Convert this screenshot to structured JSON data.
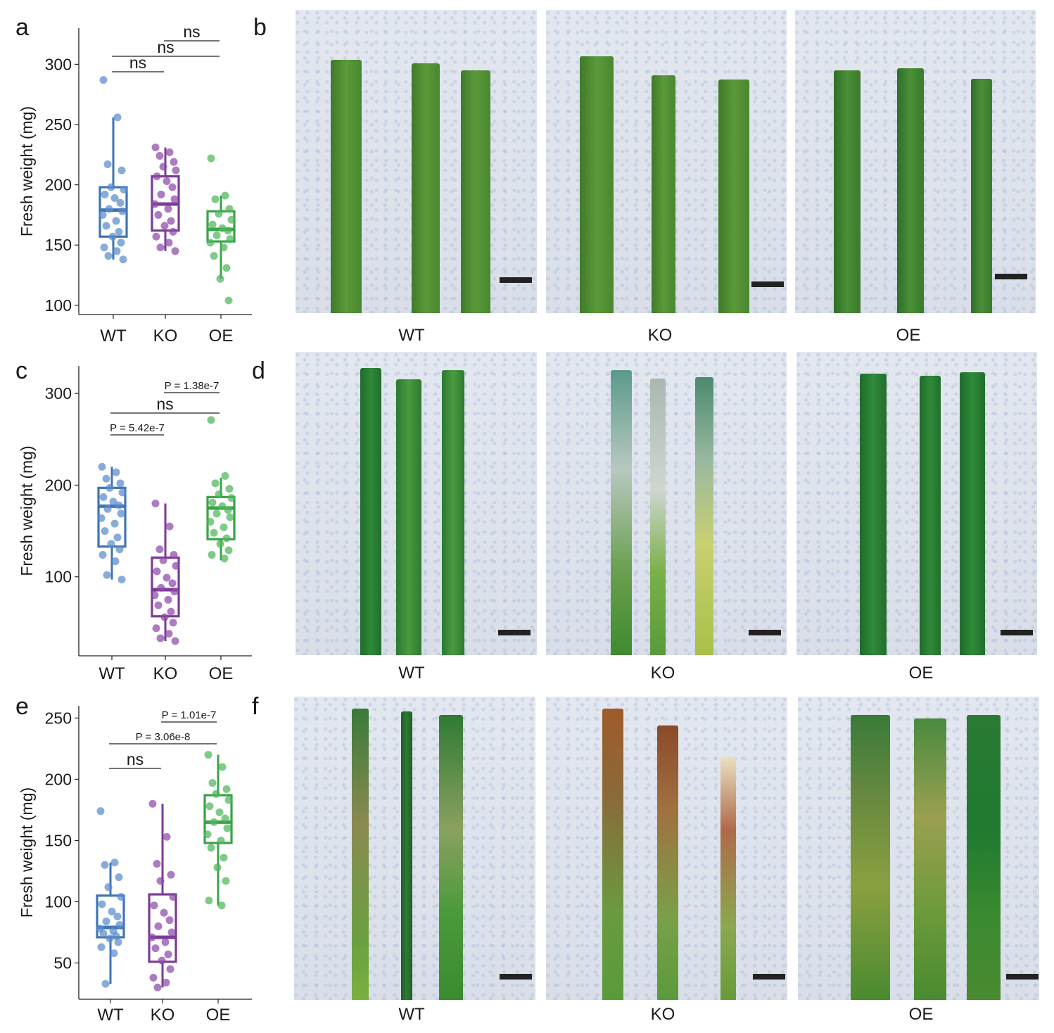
{
  "panels": {
    "a": "a",
    "b": "b",
    "c": "c",
    "d": "d",
    "e": "e",
    "f": "f"
  },
  "photo_labels": {
    "b": [
      "WT",
      "KO",
      "OE"
    ],
    "d": [
      "WT",
      "KO",
      "OE"
    ],
    "f": [
      "WT",
      "KO",
      "OE"
    ]
  },
  "colors": {
    "WT": "#3f74b5",
    "KO": "#7b3b95",
    "OE": "#3aa348",
    "WT_point": "#5a8ccc",
    "KO_point": "#8e4aa7",
    "OE_point": "#4db65b"
  },
  "chart_data": [
    {
      "type": "box",
      "panel": "a",
      "ylabel": "Fresh weight (mg)",
      "categories": [
        "WT",
        "KO",
        "OE"
      ],
      "ylim": [
        97,
        330
      ],
      "yticks": [
        100,
        150,
        200,
        250,
        300
      ],
      "boxes": [
        {
          "name": "WT",
          "q1": 157,
          "median": 179,
          "q3": 198,
          "whisker_low": 138,
          "whisker_high": 256,
          "points": [
            287,
            256,
            217,
            212,
            198,
            196,
            192,
            189,
            185,
            180,
            178,
            175,
            170,
            166,
            161,
            157,
            152,
            148,
            145,
            141,
            138
          ]
        },
        {
          "name": "KO",
          "q1": 162,
          "median": 184,
          "q3": 207,
          "whisker_low": 145,
          "whisker_high": 231,
          "points": [
            231,
            227,
            224,
            219,
            215,
            212,
            207,
            203,
            198,
            192,
            188,
            184,
            180,
            175,
            170,
            166,
            161,
            157,
            152,
            148,
            145
          ]
        },
        {
          "name": "OE",
          "q1": 153,
          "median": 163,
          "q3": 178,
          "whisker_low": 122,
          "whisker_high": 191,
          "points": [
            222,
            191,
            188,
            180,
            176,
            171,
            167,
            164,
            162,
            158,
            155,
            152,
            148,
            141,
            131,
            122,
            104
          ]
        }
      ],
      "annotations": [
        {
          "text": "ns",
          "from": "WT",
          "to": "KO",
          "level": 0
        },
        {
          "text": "ns",
          "from": "WT",
          "to": "OE",
          "level": 1
        },
        {
          "text": "ns",
          "from": "KO",
          "to": "OE",
          "level": 2
        }
      ]
    },
    {
      "type": "box",
      "panel": "c",
      "ylabel": "Fresh weight (mg)",
      "categories": [
        "WT",
        "KO",
        "OE"
      ],
      "ylim": [
        20,
        330
      ],
      "yticks": [
        100,
        200,
        300
      ],
      "boxes": [
        {
          "name": "WT",
          "q1": 133,
          "median": 177,
          "q3": 197,
          "whisker_low": 97,
          "whisker_high": 220,
          "points": [
            220,
            214,
            207,
            202,
            197,
            192,
            187,
            182,
            178,
            174,
            169,
            164,
            158,
            150,
            143,
            136,
            130,
            124,
            117,
            102,
            97
          ]
        },
        {
          "name": "KO",
          "q1": 57,
          "median": 86,
          "q3": 121,
          "whisker_low": 30,
          "whisker_high": 180,
          "points": [
            180,
            155,
            130,
            124,
            118,
            112,
            106,
            99,
            93,
            88,
            84,
            80,
            75,
            69,
            62,
            56,
            50,
            44,
            38,
            33,
            30
          ]
        },
        {
          "name": "OE",
          "q1": 141,
          "median": 175,
          "q3": 187,
          "whisker_low": 118,
          "whisker_high": 208,
          "points": [
            271,
            210,
            202,
            196,
            190,
            186,
            181,
            177,
            173,
            169,
            165,
            160,
            154,
            148,
            142,
            136,
            129,
            124,
            120
          ]
        }
      ],
      "annotations": [
        {
          "text": "P = 5.42e-7",
          "from": "WT",
          "to": "KO",
          "level": 0
        },
        {
          "text": "ns",
          "from": "WT",
          "to": "OE",
          "level": 1
        },
        {
          "text": "P = 1.38e-7",
          "from": "KO",
          "to": "OE",
          "level": 2
        }
      ]
    },
    {
      "type": "box",
      "panel": "e",
      "ylabel": "Fresh weight (mg)",
      "categories": [
        "WT",
        "KO",
        "OE"
      ],
      "ylim": [
        25,
        260
      ],
      "yticks": [
        50,
        100,
        150,
        200,
        250
      ],
      "boxes": [
        {
          "name": "WT",
          "q1": 71,
          "median": 79,
          "q3": 105,
          "whisker_low": 33,
          "whisker_high": 132,
          "points": [
            174,
            132,
            130,
            120,
            112,
            104,
            98,
            92,
            88,
            84,
            81,
            78,
            76,
            74,
            72,
            70,
            67,
            63,
            58,
            33
          ]
        },
        {
          "name": "KO",
          "q1": 51,
          "median": 71,
          "q3": 106,
          "whisker_low": 30,
          "whisker_high": 180,
          "points": [
            180,
            153,
            131,
            122,
            117,
            104,
            97,
            91,
            85,
            80,
            75,
            71,
            67,
            62,
            57,
            52,
            45,
            38,
            34,
            30
          ]
        },
        {
          "name": "OE",
          "q1": 148,
          "median": 165,
          "q3": 187,
          "whisker_low": 97,
          "whisker_high": 220,
          "points": [
            220,
            210,
            197,
            192,
            188,
            183,
            178,
            173,
            168,
            165,
            160,
            155,
            150,
            144,
            136,
            128,
            117,
            101,
            97
          ]
        }
      ],
      "annotations": [
        {
          "text": "ns",
          "from": "WT",
          "to": "KO",
          "level": 0
        },
        {
          "text": "P = 3.06e-8",
          "from": "WT",
          "to": "OE",
          "level": 1
        },
        {
          "text": "P = 1.01e-7",
          "from": "KO",
          "to": "OE",
          "level": 2
        }
      ]
    }
  ]
}
